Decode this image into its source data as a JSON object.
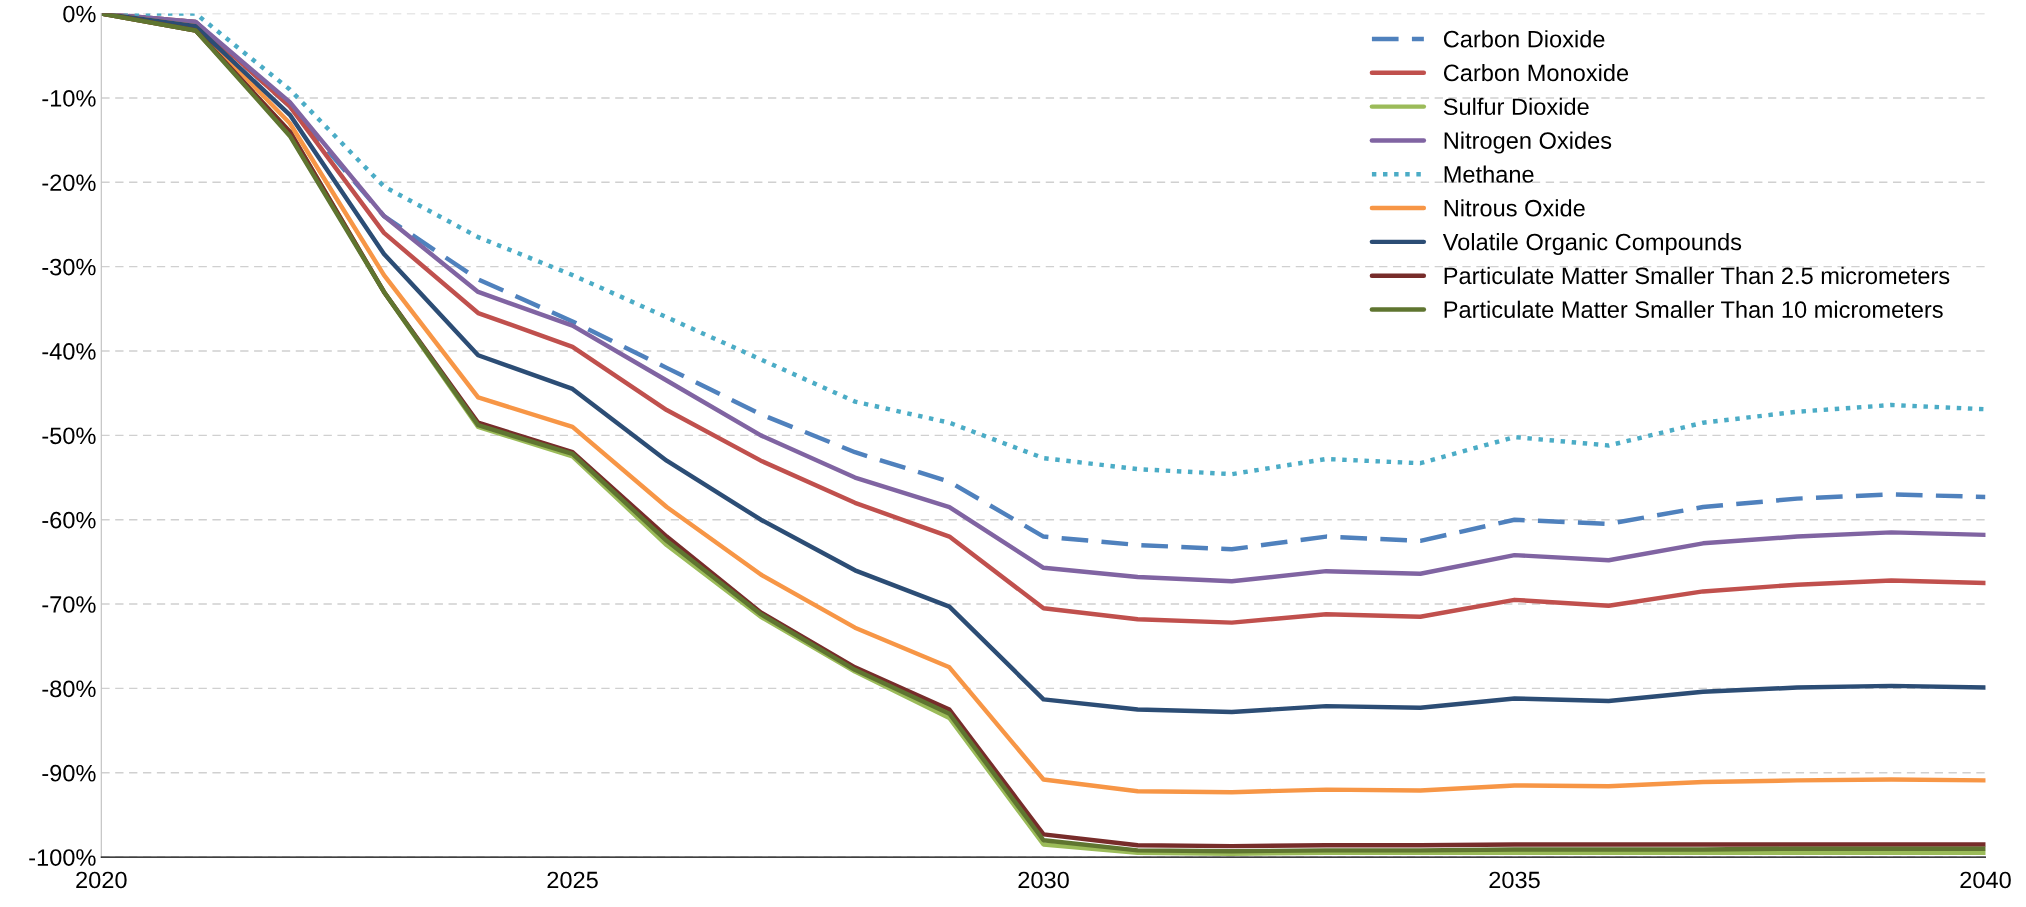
{
  "chart_data": {
    "type": "line",
    "x": [
      "2020",
      "2021",
      "2022",
      "2023",
      "2024",
      "2025",
      "2026",
      "2027",
      "2028",
      "2029",
      "2030",
      "2031",
      "2032",
      "2033",
      "2034",
      "2035",
      "2036",
      "2037",
      "2038",
      "2039",
      "2040"
    ],
    "series": [
      {
        "name": "Carbon Dioxide",
        "color": "#4f81bd",
        "line_style": "dashed",
        "values": [
          0,
          -1,
          -11,
          -24,
          -31.5,
          -36.5,
          -42,
          -47.5,
          -52,
          -55.5,
          -62,
          -63,
          -63.5,
          -62,
          -62.5,
          -60,
          -60.5,
          -58.5,
          -57.5,
          -57,
          -57.3
        ]
      },
      {
        "name": "Carbon Monoxide",
        "color": "#c0504d",
        "values": [
          0,
          -1,
          -11,
          -26,
          -35.5,
          -39.5,
          -47,
          -53,
          -58,
          -62,
          -70.5,
          -71.8,
          -72.2,
          -71.2,
          -71.5,
          -69.5,
          -70.2,
          -68.5,
          -67.7,
          -67.2,
          -67.5
        ]
      },
      {
        "name": "Sulfur Dioxide",
        "color": "#9bbb59",
        "values": [
          0,
          -2,
          -14,
          -33,
          -49,
          -52.5,
          -63,
          -71.5,
          -78,
          -83.5,
          -98.5,
          -99.5,
          -99.6,
          -99.5,
          -99.5,
          -99.5,
          -99.5,
          -99.5,
          -99.5,
          -99.5,
          -99.5
        ]
      },
      {
        "name": "Nitrogen Oxides",
        "color": "#8064a2",
        "values": [
          0,
          -1,
          -10.5,
          -24,
          -33,
          -37,
          -43.5,
          -50,
          -55,
          -58.5,
          -65.7,
          -66.8,
          -67.3,
          -66.1,
          -66.4,
          -64.2,
          -64.8,
          -62.8,
          -62,
          -61.5,
          -61.8
        ]
      },
      {
        "name": "Methane",
        "color": "#4bacc6",
        "line_style": "dotted",
        "values": [
          0,
          0,
          -9,
          -20.5,
          -26.5,
          -31,
          -36,
          -41,
          -46,
          -48.5,
          -52.7,
          -54,
          -54.6,
          -52.8,
          -53.3,
          -50.2,
          -51.2,
          -48.5,
          -47.2,
          -46.4,
          -46.9
        ]
      },
      {
        "name": "Nitrous Oxide",
        "color": "#f79646",
        "values": [
          0,
          -1.5,
          -13,
          -31,
          -45.5,
          -49,
          -58.5,
          -66.5,
          -72.8,
          -77.5,
          -90.8,
          -92.2,
          -92.3,
          -92,
          -92.1,
          -91.5,
          -91.6,
          -91.1,
          -90.9,
          -90.8,
          -90.9
        ]
      },
      {
        "name": "Volatile Organic Compounds",
        "color": "#2c4d75",
        "values": [
          0,
          -1.5,
          -12,
          -28.5,
          -40.5,
          -44.5,
          -53,
          -60,
          -66,
          -70.3,
          -81.3,
          -82.5,
          -82.8,
          -82.1,
          -82.3,
          -81.2,
          -81.5,
          -80.4,
          -79.9,
          -79.7,
          -79.9
        ]
      },
      {
        "name": "Particulate Matter Smaller Than 2.5 micrometers",
        "color": "#772c2a",
        "values": [
          0,
          -2,
          -14,
          -33,
          -48.5,
          -52,
          -62,
          -71,
          -77.5,
          -82.5,
          -97.3,
          -98.6,
          -98.7,
          -98.6,
          -98.6,
          -98.5,
          -98.5,
          -98.5,
          -98.5,
          -98.5,
          -98.5
        ]
      },
      {
        "name": "Particulate Matter Smaller Than 10 micrometers",
        "color": "#5f7530",
        "values": [
          0,
          -2,
          -14.5,
          -33,
          -48.8,
          -52.2,
          -62.5,
          -71.2,
          -77.8,
          -83,
          -98,
          -99.2,
          -99.3,
          -99.2,
          -99.2,
          -99.1,
          -99.1,
          -99.1,
          -99,
          -99,
          -99
        ]
      }
    ],
    "xlim": [
      "2020",
      "2040"
    ],
    "xticks": [
      "2020",
      "2025",
      "2030",
      "2035",
      "2040"
    ],
    "ylim": [
      -100,
      0
    ],
    "yticks": [
      {
        "value": 0,
        "label": "0%"
      },
      {
        "value": -10,
        "label": "-10%"
      },
      {
        "value": -20,
        "label": "-20%"
      },
      {
        "value": -30,
        "label": "-30%"
      },
      {
        "value": -40,
        "label": "-40%"
      },
      {
        "value": -50,
        "label": "-50%"
      },
      {
        "value": -60,
        "label": "-60%"
      },
      {
        "value": -70,
        "label": "-70%"
      },
      {
        "value": -80,
        "label": "-80%"
      },
      {
        "value": -90,
        "label": "-90%"
      },
      {
        "value": -100,
        "label": "-100%"
      }
    ],
    "grid": "y",
    "legend": "top right",
    "marker": "none",
    "line_style": "solid"
  }
}
